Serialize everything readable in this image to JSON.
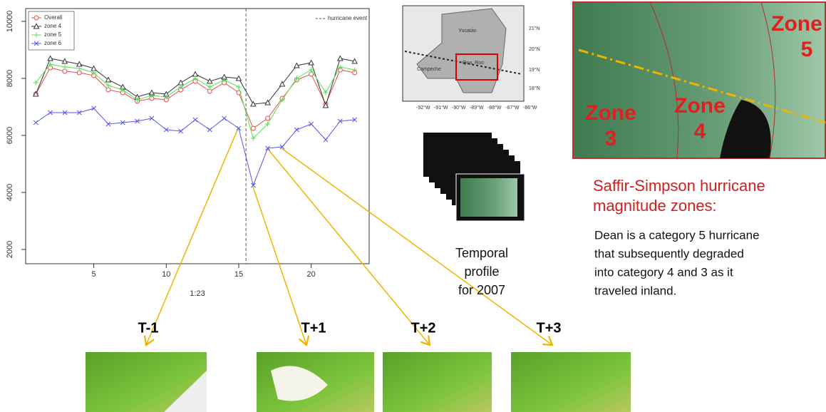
{
  "chart_data": {
    "type": "line",
    "x_label": "1:23",
    "x": [
      1,
      2,
      3,
      4,
      5,
      6,
      7,
      8,
      9,
      10,
      11,
      12,
      13,
      14,
      15,
      16,
      17,
      18,
      19,
      20,
      21,
      22,
      23
    ],
    "series": [
      {
        "name": "Overall",
        "color": "#e05050",
        "marker": "circle",
        "values": [
          7450,
          8375,
          8250,
          8200,
          8100,
          7600,
          7500,
          7200,
          7300,
          7250,
          7600,
          7900,
          7550,
          7850,
          7500,
          6250,
          6600,
          7300,
          7950,
          8150,
          7100,
          8300,
          8200
        ]
      },
      {
        "name": "zone 4",
        "color": "#333333",
        "marker": "triangle",
        "values": [
          7450,
          8700,
          8600,
          8500,
          8350,
          7950,
          7700,
          7350,
          7500,
          7450,
          7850,
          8150,
          7900,
          8050,
          8000,
          7100,
          7150,
          7800,
          8450,
          8550,
          7050,
          8700,
          8600
        ]
      },
      {
        "name": "zone 5",
        "color": "#55e055",
        "marker": "plus",
        "values": [
          7850,
          8500,
          8400,
          8350,
          8200,
          7750,
          7600,
          7250,
          7400,
          7350,
          7700,
          8000,
          7700,
          7950,
          7700,
          5900,
          6400,
          7250,
          8000,
          8300,
          7500,
          8400,
          8300
        ]
      },
      {
        "name": "zone 6",
        "color": "#5555ee",
        "marker": "x",
        "values": [
          6450,
          6800,
          6800,
          6800,
          6950,
          6400,
          6450,
          6500,
          6600,
          6200,
          6150,
          6550,
          6200,
          6600,
          6250,
          4250,
          5550,
          5600,
          6200,
          6400,
          5850,
          6500,
          6550
        ]
      }
    ],
    "event_x": 15.5,
    "event_label": "hurricane event",
    "xlim": [
      0.3,
      24
    ],
    "ylim": [
      1500,
      10450
    ],
    "xticks": [
      5,
      10,
      15,
      20
    ],
    "yticks": [
      2000,
      4000,
      6000,
      8000,
      10000
    ]
  },
  "map": {
    "labels": [
      "Yucatán",
      "Qna. Roo",
      "Campeche",
      "21°N",
      "20°N",
      "19°N",
      "18°N",
      "-92°W",
      "-91°W",
      "-90°W",
      "-89°W",
      "-88°W",
      "-87°W",
      "-86°W"
    ]
  },
  "zones": [
    {
      "word": "Zone",
      "number": "5"
    },
    {
      "word": "Zone",
      "number": "3"
    },
    {
      "word": "Zone",
      "number": "4"
    }
  ],
  "caption": {
    "title": [
      "Saffir-Simpson hurricane",
      "magnitude zones:"
    ],
    "body": [
      "Dean is a category 5 hurricane",
      "that subsequently degraded",
      "into category 4 and 3 as it",
      "traveled inland."
    ]
  },
  "profile": [
    "Temporal",
    "profile",
    "for 2007"
  ],
  "frames": [
    "T-1",
    "T+1",
    "T+2",
    "T+3"
  ]
}
